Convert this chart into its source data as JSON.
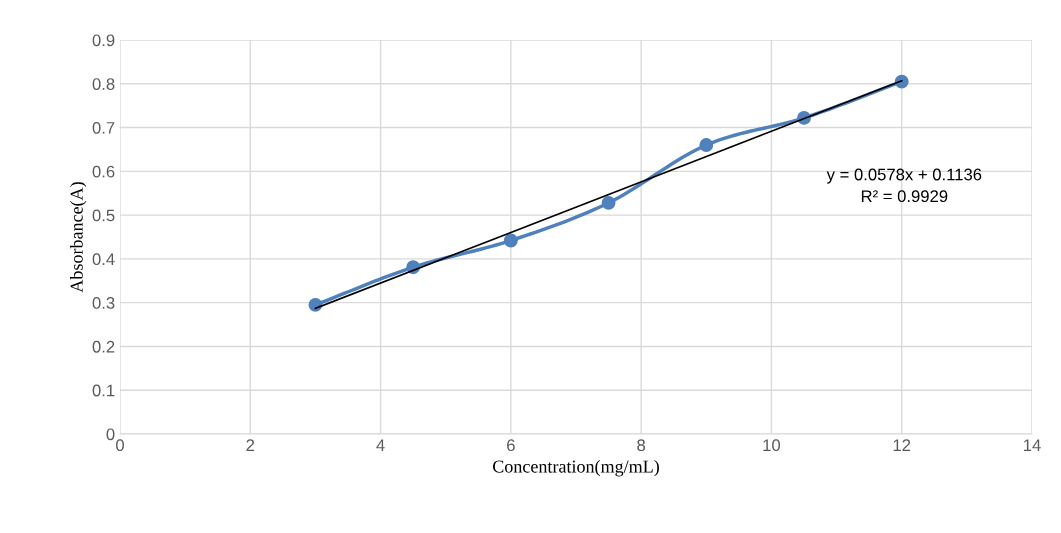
{
  "chart_data": {
    "type": "line",
    "xlabel": "Concentration(mg/mL)",
    "ylabel": "Absorbance(A)",
    "series": [
      {
        "color": "#4f81bd",
        "marker": "circle",
        "x": [
          3,
          4.5,
          6,
          7.5,
          9,
          10.5,
          12
        ],
        "values": [
          0.295,
          0.381,
          0.442,
          0.528,
          0.66,
          0.722,
          0.805
        ]
      },
      {
        "color": "#000000",
        "marker": "none",
        "x": [
          3,
          12
        ],
        "values": [
          0.287,
          0.807
        ]
      }
    ],
    "annotations": [
      "y = 0.0578x + 0.1136",
      "R² = 0.9929"
    ],
    "xlim": [
      0,
      14
    ],
    "xticks": [
      0,
      2,
      4,
      6,
      8,
      10,
      12,
      14
    ],
    "ylim": [
      0,
      0.9
    ],
    "yticks": [
      0,
      0.1,
      0.2,
      0.3,
      0.4,
      0.5,
      0.6,
      0.7,
      0.8,
      0.9
    ],
    "grid": true,
    "legend": false
  }
}
